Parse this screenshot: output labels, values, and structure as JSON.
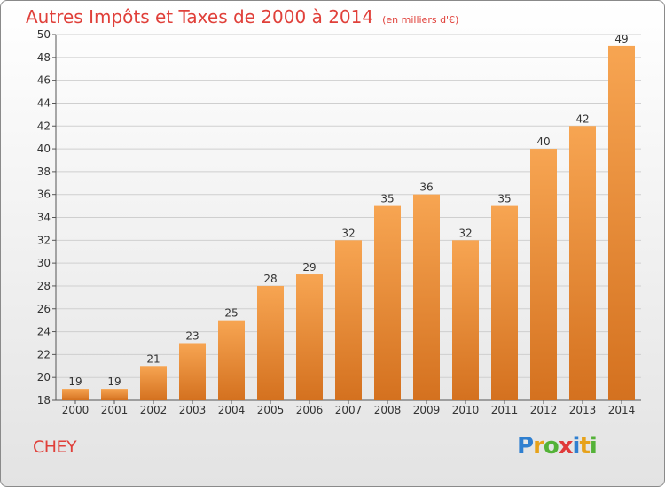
{
  "title": "Autres Impôts et Taxes de 2000 à 2014",
  "unit": "(en milliers d'€)",
  "commune": "CHEY",
  "logo": {
    "letters": [
      {
        "ch": "P",
        "color": "#2f7fd0"
      },
      {
        "ch": "r",
        "color": "#e7a21a"
      },
      {
        "ch": "o",
        "color": "#54b238"
      },
      {
        "ch": "x",
        "color": "#e03a3a"
      },
      {
        "ch": "i",
        "color": "#2f7fd0"
      },
      {
        "ch": "t",
        "color": "#e7a21a"
      },
      {
        "ch": "i",
        "color": "#54b238"
      }
    ]
  },
  "colors": {
    "bar_top": "#f7a552",
    "bar_bottom": "#d4711f",
    "title": "#e0403a",
    "grid": "#cfcfcf"
  },
  "chart_data": {
    "type": "bar",
    "title": "Autres Impôts et Taxes de 2000 à 2014",
    "ylabel": "",
    "xlabel": "",
    "categories": [
      "2000",
      "2001",
      "2002",
      "2003",
      "2004",
      "2005",
      "2006",
      "2007",
      "2008",
      "2009",
      "2010",
      "2011",
      "2012",
      "2013",
      "2014"
    ],
    "values": [
      19,
      19,
      21,
      23,
      25,
      28,
      29,
      32,
      35,
      36,
      32,
      35,
      40,
      42,
      49
    ],
    "ylim": [
      18,
      50
    ],
    "yticks": [
      18,
      20,
      22,
      24,
      26,
      28,
      30,
      32,
      34,
      36,
      38,
      40,
      42,
      44,
      46,
      48,
      50
    ],
    "grid": true
  }
}
